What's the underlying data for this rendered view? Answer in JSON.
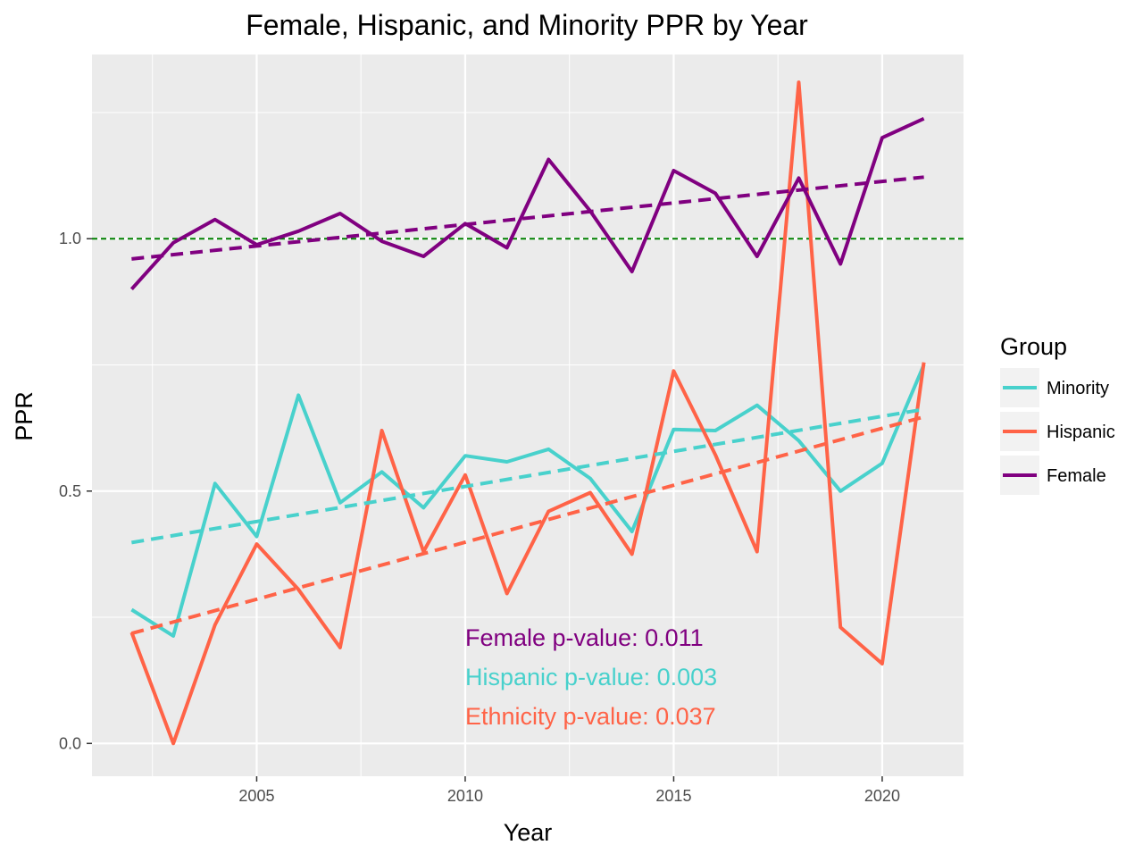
{
  "chart_data": {
    "type": "line",
    "title": "Female, Hispanic, and Minority PPR by Year",
    "xlabel": "Year",
    "ylabel": "PPR",
    "xlim": [
      2001.05,
      2021.95
    ],
    "ylim": [
      -0.065,
      1.365
    ],
    "x_ticks": [
      2005,
      2010,
      2015,
      2020
    ],
    "y_ticks": [
      0.0,
      0.5,
      1.0
    ],
    "y_tick_labels": [
      "0.0",
      "0.5",
      "1.0"
    ],
    "grid": true,
    "background": "#ebebeb",
    "reference_line": {
      "y": 1.0,
      "color": "#008000",
      "style": "dashed"
    },
    "legend": {
      "title": "Group",
      "placement": "right",
      "entries": [
        {
          "label": "Minority",
          "color": "#48d1cc"
        },
        {
          "label": "Hispanic",
          "color": "#ff6347"
        },
        {
          "label": "Female",
          "color": "#800080"
        }
      ]
    },
    "x": [
      2002,
      2003,
      2004,
      2005,
      2006,
      2007,
      2008,
      2009,
      2010,
      2011,
      2012,
      2013,
      2014,
      2015,
      2016,
      2017,
      2018,
      2019,
      2020,
      2021
    ],
    "series": [
      {
        "name": "Minority",
        "color": "#48d1cc",
        "values": [
          0.265,
          0.213,
          0.515,
          0.41,
          0.69,
          0.477,
          0.538,
          0.467,
          0.57,
          0.558,
          0.583,
          0.525,
          0.42,
          0.622,
          0.62,
          0.67,
          0.6,
          0.5,
          0.555,
          0.75
        ],
        "trend": [
          0.398,
          0.662
        ]
      },
      {
        "name": "Hispanic",
        "color": "#ff6347",
        "values": [
          0.22,
          0.0,
          0.235,
          0.395,
          0.305,
          0.19,
          0.62,
          0.38,
          0.532,
          0.297,
          0.46,
          0.497,
          0.375,
          0.738,
          0.572,
          0.38,
          1.31,
          0.23,
          0.158,
          0.755
        ],
        "trend": [
          0.218,
          0.647
        ]
      },
      {
        "name": "Female",
        "color": "#800080",
        "values": [
          0.9,
          0.992,
          1.038,
          0.988,
          1.015,
          1.05,
          0.995,
          0.965,
          1.03,
          0.982,
          1.157,
          1.055,
          0.935,
          1.135,
          1.09,
          0.965,
          1.12,
          0.95,
          1.2,
          1.238
        ],
        "trend": [
          0.96,
          1.122
        ]
      }
    ],
    "annotations": [
      {
        "text": "Female p-value: 0.011",
        "color": "#800080"
      },
      {
        "text": "Hispanic p-value: 0.003",
        "color": "#48d1cc"
      },
      {
        "text": "Ethnicity p-value: 0.037",
        "color": "#ff6347"
      }
    ]
  }
}
